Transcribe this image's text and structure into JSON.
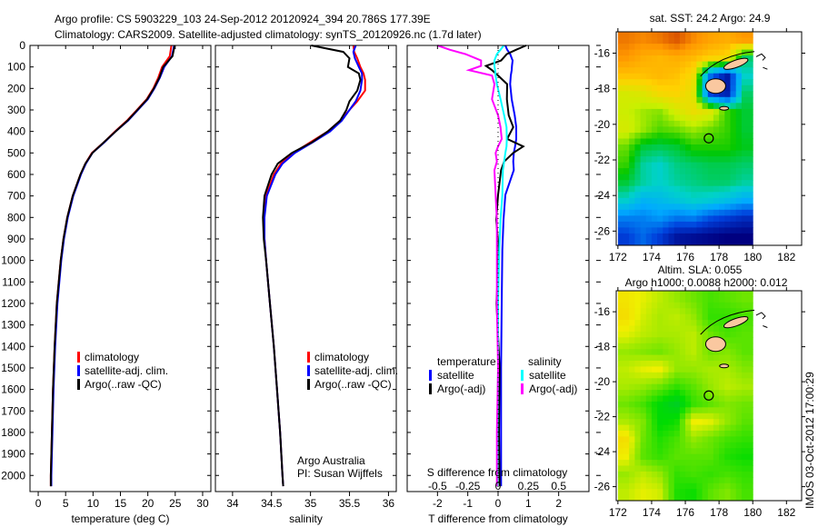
{
  "title": {
    "line1": "Argo profile: CS 5903229_103 24-Sep-2012 20120924_394 20.786S 177.39E",
    "line2": "Climatology: CARS2009. Satellite-adjusted climatology: synTS_20120926.nc (1.7d later)"
  },
  "depth_ticks": [
    0,
    100,
    200,
    300,
    400,
    500,
    600,
    700,
    800,
    900,
    1000,
    1100,
    1200,
    1300,
    1400,
    1500,
    1600,
    1700,
    1800,
    1900,
    2000
  ],
  "colors": {
    "climatology": "#ff0000",
    "satellite": "#0000ff",
    "argo": "#000000",
    "sal_satellite": "#00ffff",
    "sal_argo": "#ff00ff"
  },
  "chart_data": [
    {
      "type": "line",
      "xlabel": "temperature (deg C)",
      "xlim": [
        -1.5,
        31.5
      ],
      "ylim": [
        2075,
        0
      ],
      "xticks": [
        0,
        5,
        10,
        15,
        20,
        25,
        30
      ],
      "legend": [
        "climatology",
        "satellite-adj. clim.",
        "Argo(..raw -QC)"
      ],
      "depth": [
        0,
        50,
        100,
        150,
        200,
        250,
        300,
        350,
        400,
        450,
        500,
        550,
        600,
        700,
        800,
        900,
        1000,
        1200,
        1400,
        1600,
        1800,
        2000,
        2050
      ],
      "series": [
        {
          "name": "climatology",
          "color": "#ff0000",
          "values": [
            24.3,
            24.0,
            22.6,
            21.9,
            21.0,
            19.8,
            18.0,
            16.2,
            14.0,
            12.0,
            9.8,
            8.6,
            7.7,
            6.3,
            5.3,
            4.6,
            4.1,
            3.4,
            3.0,
            2.7,
            2.5,
            2.3,
            2.3
          ]
        },
        {
          "name": "satellite-adj. clim.",
          "color": "#0000ff",
          "values": [
            24.8,
            24.4,
            23.0,
            22.2,
            21.2,
            20.0,
            18.2,
            16.4,
            14.1,
            12.1,
            9.9,
            8.7,
            7.8,
            6.4,
            5.4,
            4.7,
            4.2,
            3.5,
            3.1,
            2.8,
            2.6,
            2.4,
            2.4
          ]
        },
        {
          "name": "Argo(..raw -QC)",
          "color": "#000000",
          "values": [
            24.9,
            24.5,
            22.8,
            22.1,
            21.1,
            19.9,
            18.1,
            16.3,
            14.1,
            12.0,
            9.9,
            8.6,
            7.7,
            6.3,
            5.3,
            4.6,
            4.1,
            3.4,
            3.0,
            2.7,
            2.5,
            2.3,
            2.3
          ]
        }
      ]
    },
    {
      "type": "line",
      "xlabel": "salinity",
      "xlim": [
        33.78,
        36.1
      ],
      "ylim": [
        2075,
        0
      ],
      "xticks": [
        34,
        34.5,
        35,
        35.5,
        36
      ],
      "legend": [
        "climatology",
        "satellite-adj. clim.",
        "Argo(..raw -QC)"
      ],
      "annotation": [
        "Argo Australia",
        "PI: Susan Wijffels"
      ],
      "depth": [
        0,
        30,
        60,
        100,
        130,
        160,
        210,
        260,
        300,
        350,
        400,
        450,
        500,
        550,
        600,
        700,
        800,
        900,
        1000,
        1200,
        1400,
        1600,
        1800,
        2000,
        2050
      ],
      "series": [
        {
          "name": "climatology",
          "color": "#ff0000",
          "values": [
            35.55,
            35.56,
            35.6,
            35.64,
            35.68,
            35.7,
            35.7,
            35.6,
            35.5,
            35.38,
            35.22,
            35.0,
            34.78,
            34.62,
            34.53,
            34.43,
            34.4,
            34.41,
            34.43,
            34.48,
            34.53,
            34.57,
            34.61,
            34.64,
            34.65
          ]
        },
        {
          "name": "satellite-adj. clim.",
          "color": "#0000ff",
          "values": [
            35.58,
            35.55,
            35.57,
            35.62,
            35.66,
            35.66,
            35.64,
            35.58,
            35.5,
            35.4,
            35.25,
            35.03,
            34.8,
            34.64,
            34.55,
            34.44,
            34.41,
            34.41,
            34.43,
            34.48,
            34.53,
            34.57,
            34.61,
            34.64,
            34.65
          ]
        },
        {
          "name": "Argo(..raw -QC)",
          "color": "#000000",
          "values": [
            35.01,
            35.42,
            35.5,
            35.48,
            35.62,
            35.64,
            35.6,
            35.5,
            35.46,
            35.38,
            35.22,
            35.02,
            34.76,
            34.58,
            34.5,
            34.41,
            34.39,
            34.4,
            34.43,
            34.48,
            34.53,
            34.57,
            34.61,
            34.64,
            34.65
          ]
        }
      ]
    },
    {
      "type": "line",
      "xlabel": "T difference from climatology",
      "xlabel2": "S difference from climatology",
      "xlim": [
        -3,
        3
      ],
      "ylim": [
        2075,
        0
      ],
      "xticks": [
        -2,
        -1,
        0,
        1,
        2
      ],
      "xticks2": [
        -0.5,
        -0.25,
        0,
        0.25,
        0.5
      ],
      "s_to_t_factor": 4,
      "legend_titles": [
        "temperature",
        "salinity"
      ],
      "legend": [
        "satellite",
        "Argo(-adj)",
        "satellite",
        "Argo(-adj)"
      ],
      "depth": [
        0,
        20,
        40,
        70,
        95,
        115,
        140,
        180,
        250,
        325,
        380,
        435,
        470,
        500,
        540,
        580,
        695,
        810,
        950,
        1200,
        1500,
        1800,
        2050
      ],
      "series": [
        {
          "name": "T satellite",
          "color": "#0000ff",
          "units": "T",
          "values": [
            0.24,
            0.3,
            0.4,
            0.48,
            0.46,
            0.45,
            0.42,
            0.4,
            0.45,
            0.55,
            0.6,
            0.6,
            0.56,
            0.52,
            0.5,
            0.52,
            0.24,
            0.18,
            0.14,
            0.12,
            0.1,
            0.1,
            0.1
          ]
        },
        {
          "name": "T Argo(-adj)",
          "color": "#000000",
          "units": "T",
          "values": [
            0.93,
            0.6,
            0.29,
            0.1,
            -0.4,
            -0.2,
            0.0,
            0.3,
            0.29,
            0.35,
            0.5,
            0.3,
            0.83,
            0.5,
            0.2,
            0.1,
            0.0,
            -0.06,
            0.02,
            -0.05,
            0.05,
            0.03,
            0.05
          ]
        },
        {
          "name": "S satellite",
          "color": "#00ffff",
          "units": "S",
          "values": [
            0.047,
            0.02,
            -0.01,
            -0.03,
            -0.03,
            -0.025,
            -0.02,
            -0.01,
            0.02,
            0.05,
            0.07,
            0.072,
            0.07,
            0.06,
            0.05,
            0.04,
            0.035,
            0.02,
            0.01,
            0.0,
            0.0,
            -0.005,
            -0.005
          ]
        },
        {
          "name": "S Argo(-adj)",
          "color": "#ff00ff",
          "units": "S",
          "values": [
            -0.5,
            -0.4,
            -0.27,
            -0.14,
            -0.14,
            -0.24,
            -0.05,
            -0.03,
            -0.05,
            0.0,
            0.02,
            0.03,
            0.0,
            -0.02,
            -0.01,
            -0.03,
            -0.02,
            -0.01,
            -0.01,
            -0.01,
            0.0,
            -0.01,
            -0.01
          ]
        }
      ]
    },
    {
      "type": "heatmap",
      "title": "sat. SST: 24.2 Argo: 24.9",
      "lon": [
        172,
        173,
        174,
        175,
        176,
        177,
        178,
        179
      ],
      "lat": [
        -15,
        -16,
        -17,
        -18,
        -19,
        -20,
        -21,
        -22,
        -23,
        -24,
        -25,
        -26
      ],
      "xticks": [
        172,
        174,
        176,
        178,
        180,
        182
      ],
      "yticks": [
        -16,
        -18,
        -20,
        -22,
        -24,
        -26
      ],
      "xlim": [
        171.9,
        182.9
      ],
      "ylim": [
        -26.8,
        -14.8
      ],
      "crange": [
        21.2,
        27.0
      ],
      "argo_position": {
        "lon": 177.39,
        "lat": -20.786
      },
      "values": [
        [
          26.6,
          26.5,
          26.6,
          26.8,
          26.5,
          26.3,
          26.2,
          26.4
        ],
        [
          26.4,
          26.2,
          26.1,
          26.2,
          26.1,
          25.9,
          25.8,
          24.0
        ],
        [
          26.0,
          26.0,
          26.1,
          26.0,
          25.7,
          22.5,
          21.5,
          23.6
        ],
        [
          25.3,
          25.4,
          25.7,
          25.8,
          25.5,
          22.0,
          21.5,
          24.0
        ],
        [
          25.2,
          25.0,
          24.9,
          25.3,
          25.6,
          25.4,
          24.6,
          24.2
        ],
        [
          25.3,
          25.0,
          24.7,
          24.8,
          25.0,
          24.8,
          24.6,
          24.2
        ],
        [
          24.8,
          24.2,
          24.1,
          24.2,
          24.5,
          24.5,
          24.5,
          24.3
        ],
        [
          24.6,
          23.8,
          23.6,
          23.9,
          24.0,
          24.1,
          24.1,
          24.0
        ],
        [
          24.2,
          23.8,
          23.6,
          23.8,
          23.9,
          24.0,
          24.0,
          23.8
        ],
        [
          23.6,
          23.1,
          23.2,
          23.4,
          23.6,
          23.5,
          23.3,
          23.0
        ],
        [
          22.6,
          22.6,
          22.8,
          22.5,
          22.6,
          22.2,
          22.0,
          21.8
        ],
        [
          22.0,
          22.4,
          22.0,
          21.5,
          21.4,
          21.3,
          21.2,
          21.2
        ]
      ]
    },
    {
      "type": "heatmap",
      "title": "Altim. SLA: 0.055",
      "subtitle": "Argo h1000: 0.0088 h2000: 0.012",
      "lon": [
        172,
        173,
        174,
        175,
        176,
        177,
        178,
        179
      ],
      "lat": [
        -15,
        -16,
        -17,
        -18,
        -19,
        -20,
        -21,
        -22,
        -23,
        -24,
        -25,
        -26
      ],
      "xticks": [
        172,
        174,
        176,
        178,
        180,
        182
      ],
      "yticks": [
        -16,
        -18,
        -20,
        -22,
        -24,
        -26
      ],
      "xlim": [
        171.9,
        182.9
      ],
      "ylim": [
        -26.8,
        -14.8
      ],
      "crange": [
        -0.1,
        0.2
      ],
      "argo_position": {
        "lon": 177.39,
        "lat": -20.786
      },
      "values": [
        [
          0.14,
          0.12,
          0.1,
          0.08,
          0.06,
          0.04,
          0.05,
          0.06
        ],
        [
          0.15,
          0.11,
          0.09,
          0.1,
          0.08,
          0.03,
          0.03,
          0.04
        ],
        [
          0.12,
          0.1,
          0.09,
          0.09,
          0.1,
          0.06,
          0.04,
          0.05
        ],
        [
          0.08,
          0.07,
          0.06,
          0.08,
          0.1,
          0.06,
          0.07,
          0.05
        ],
        [
          0.1,
          0.12,
          0.13,
          0.08,
          0.08,
          0.09,
          0.09,
          0.07
        ],
        [
          0.09,
          0.08,
          0.06,
          0.03,
          0.05,
          0.08,
          0.1,
          0.09
        ],
        [
          0.06,
          0.04,
          0.0,
          -0.03,
          0.03,
          0.05,
          0.07,
          0.06
        ],
        [
          0.09,
          0.07,
          0.0,
          0.01,
          0.13,
          0.12,
          0.08,
          0.05
        ],
        [
          0.15,
          0.06,
          0.02,
          0.04,
          0.08,
          0.06,
          0.04,
          0.03
        ],
        [
          0.13,
          0.05,
          0.03,
          0.05,
          0.05,
          0.05,
          0.02,
          0.01
        ],
        [
          0.08,
          0.1,
          0.08,
          0.03,
          0.04,
          0.03,
          0.04,
          0.03
        ],
        [
          0.1,
          0.12,
          0.11,
          0.02,
          0.01,
          0.05,
          0.07,
          0.04
        ]
      ]
    }
  ],
  "timestamp": "IMOS 03-Oct-2012 17:00:29"
}
